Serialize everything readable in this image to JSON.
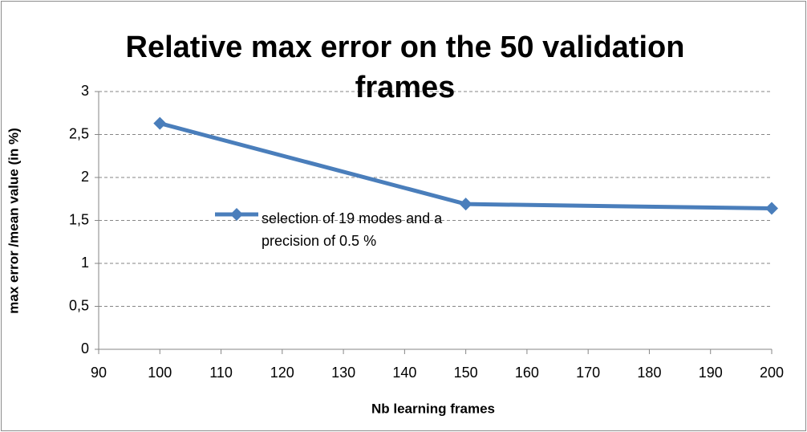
{
  "chart_data": {
    "type": "line",
    "title": "Relative max error on the 50 validation frames",
    "xlabel": "Nb learning frames",
    "ylabel": "max error /mean value (in %)",
    "x": [
      100,
      150,
      200
    ],
    "series": [
      {
        "name": "selection of 19 modes and a precision of 0.5 %",
        "color": "#4a7ebb",
        "values": [
          2.63,
          1.69,
          1.64
        ]
      }
    ],
    "xlim": [
      90,
      200
    ],
    "xticks": [
      90,
      100,
      110,
      120,
      130,
      140,
      150,
      160,
      170,
      180,
      190,
      200
    ],
    "ylim": [
      0,
      3
    ],
    "yticks": [
      0,
      {
        "value": 0.5,
        "label": "0,5"
      },
      1,
      {
        "value": 1.5,
        "label": "1,5"
      },
      2,
      {
        "value": 2.5,
        "label": "2,5"
      },
      3
    ],
    "grid": true,
    "legend": "center"
  }
}
